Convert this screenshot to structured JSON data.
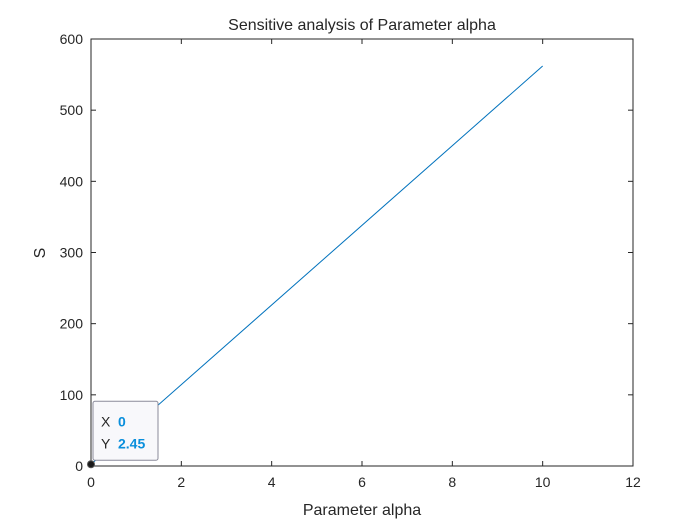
{
  "chart_data": {
    "type": "line",
    "title": "Sensitive analysis of Parameter alpha",
    "xlabel": "Parameter alpha",
    "ylabel": "S",
    "xlim": [
      0,
      12
    ],
    "ylim": [
      0,
      600
    ],
    "xticks": [
      0,
      2,
      4,
      6,
      8,
      10,
      12
    ],
    "yticks": [
      0,
      100,
      200,
      300,
      400,
      500,
      600
    ],
    "grid": false,
    "series": [
      {
        "color": "#0072bd",
        "x": [
          0,
          10
        ],
        "y": [
          2.45,
          562
        ]
      }
    ],
    "datatip": {
      "x_key": "X",
      "x_value": "0",
      "y_key": "Y",
      "y_value": "2.45",
      "point": [
        0,
        2.45
      ]
    }
  }
}
